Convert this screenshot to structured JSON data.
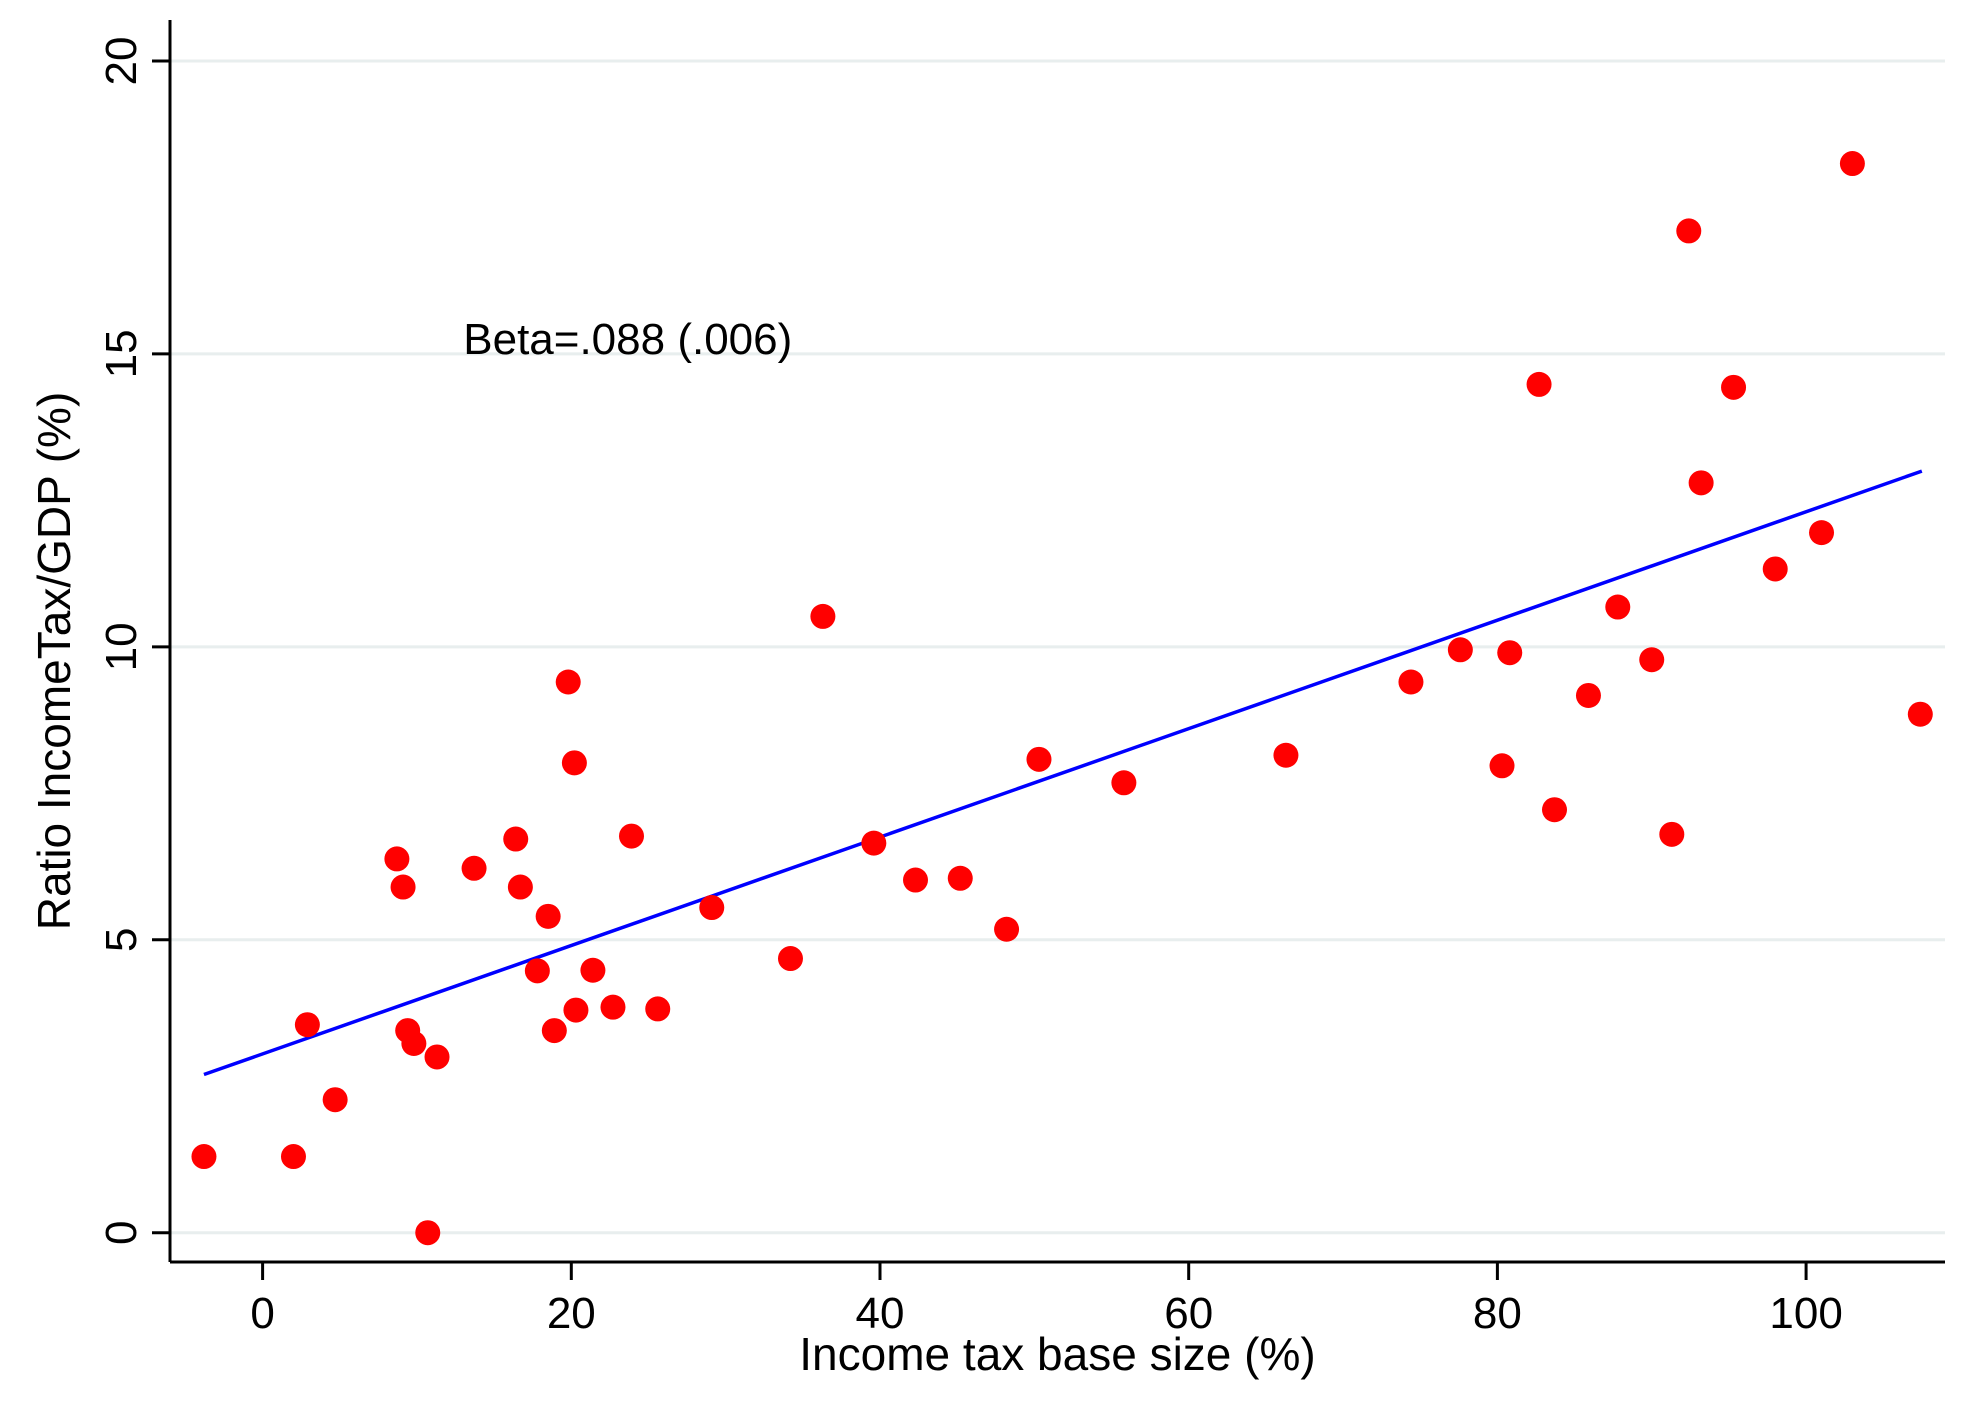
{
  "chart_data": {
    "type": "scatter",
    "xlabel": "Income tax base size (%)",
    "ylabel": "Ratio IncomeTax/GDP (%)",
    "xlim": [
      -6,
      109
    ],
    "ylim": [
      -0.5,
      20.7
    ],
    "xticks": [
      0,
      20,
      40,
      60,
      80,
      100
    ],
    "yticks": [
      0,
      5,
      10,
      15,
      20
    ],
    "grid": "horizontal",
    "colors": {
      "points": "#ff0000",
      "fit_line": "#0000ff",
      "grid": "#e8eeee"
    },
    "annotation": {
      "text": "Beta=.088 (.006)",
      "x": 13,
      "y": 15
    },
    "fit_line": {
      "x": [
        -3.8,
        107.5
      ],
      "y": [
        2.7,
        13.0
      ]
    },
    "points": [
      [
        -3.8,
        1.3
      ],
      [
        2.0,
        1.3
      ],
      [
        2.9,
        3.55
      ],
      [
        4.7,
        2.27
      ],
      [
        8.7,
        6.38
      ],
      [
        9.1,
        5.9
      ],
      [
        9.4,
        3.45
      ],
      [
        9.8,
        3.23
      ],
      [
        10.7,
        0.0
      ],
      [
        11.3,
        3.0
      ],
      [
        13.7,
        6.22
      ],
      [
        16.4,
        6.72
      ],
      [
        16.7,
        5.9
      ],
      [
        17.8,
        4.47
      ],
      [
        18.5,
        5.4
      ],
      [
        18.9,
        3.45
      ],
      [
        19.8,
        9.4
      ],
      [
        20.2,
        8.02
      ],
      [
        20.3,
        3.8
      ],
      [
        21.4,
        4.48
      ],
      [
        22.7,
        3.85
      ],
      [
        23.9,
        6.77
      ],
      [
        25.6,
        3.82
      ],
      [
        29.1,
        5.55
      ],
      [
        34.2,
        4.68
      ],
      [
        36.3,
        10.52
      ],
      [
        39.6,
        6.65
      ],
      [
        42.3,
        6.02
      ],
      [
        45.2,
        6.05
      ],
      [
        48.2,
        5.18
      ],
      [
        50.3,
        8.08
      ],
      [
        55.8,
        7.68
      ],
      [
        66.3,
        8.15
      ],
      [
        74.4,
        9.4
      ],
      [
        77.6,
        9.95
      ],
      [
        80.3,
        7.97
      ],
      [
        80.8,
        9.9
      ],
      [
        82.7,
        14.48
      ],
      [
        83.7,
        7.22
      ],
      [
        85.9,
        9.17
      ],
      [
        87.8,
        10.68
      ],
      [
        90.0,
        9.78
      ],
      [
        91.3,
        6.8
      ],
      [
        92.4,
        17.1
      ],
      [
        93.2,
        12.8
      ],
      [
        95.3,
        14.43
      ],
      [
        98.0,
        11.33
      ],
      [
        101.0,
        11.95
      ],
      [
        103.0,
        18.25
      ],
      [
        107.4,
        8.85
      ]
    ]
  }
}
